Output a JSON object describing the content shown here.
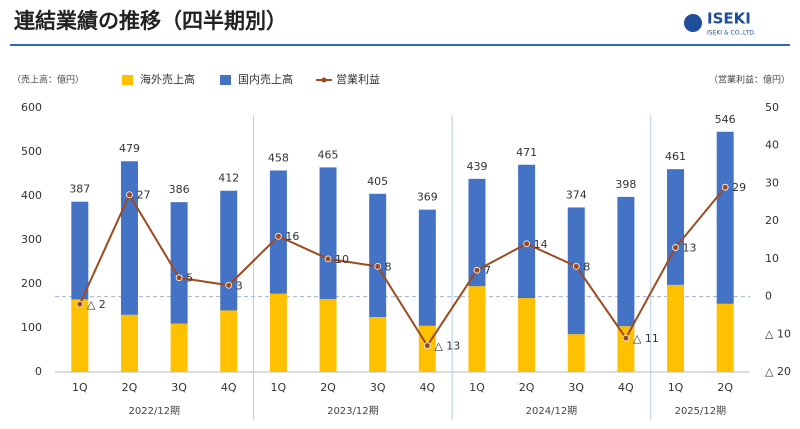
{
  "logo": {
    "name": "ISEKI",
    "company": "ISEKI & CO.,LTD."
  },
  "chart_data": {
    "type": "bar-line",
    "title": "連結業績の推移（四半期別）",
    "y_label": "（売上高：億円）",
    "y2_label": "（営業利益：億円）",
    "categories": [
      "1Q",
      "2Q",
      "3Q",
      "4Q",
      "1Q",
      "2Q",
      "3Q",
      "4Q",
      "1Q",
      "2Q",
      "3Q",
      "4Q",
      "1Q",
      "2Q"
    ],
    "groups": [
      "2022/12期",
      "2023/12期",
      "2024/12期",
      "2025/12期"
    ],
    "series": [
      {
        "name": "海外売上高",
        "color": "#FFC000",
        "stack": true,
        "values": [
          165,
          130,
          110,
          140,
          178,
          166,
          125,
          105,
          195,
          168,
          86,
          104,
          198,
          155
        ]
      },
      {
        "name": "国内売上高",
        "color": "#4472C4",
        "stack": true,
        "values": [
          222,
          349,
          276,
          272,
          280,
          299,
          280,
          264,
          244,
          303,
          288,
          294,
          263,
          391
        ]
      },
      {
        "name": "営業利益",
        "color": "#9E4A1E",
        "axis": "y2",
        "type": "line",
        "values": [
          -2,
          27,
          5,
          3,
          16,
          10,
          8,
          -13,
          7,
          14,
          8,
          -11,
          13,
          29
        ],
        "value_labels": [
          "△ 2",
          "27",
          "5",
          "3",
          "16",
          "10",
          "8",
          "△ 13",
          "7",
          "14",
          "8",
          "△ 11",
          "13",
          "29"
        ]
      }
    ],
    "totals": [
      387,
      479,
      386,
      412,
      458,
      465,
      405,
      369,
      439,
      471,
      374,
      398,
      461,
      546
    ],
    "ylim": [
      0,
      600
    ],
    "yticks": [
      0,
      100,
      200,
      300,
      400,
      500,
      600
    ],
    "y2lim": [
      -20,
      50
    ],
    "y2ticks": [
      50,
      40,
      30,
      20,
      10,
      0,
      {
        "value": -10,
        "label": "△ 10"
      },
      {
        "value": -20,
        "label": "△ 20"
      }
    ]
  }
}
